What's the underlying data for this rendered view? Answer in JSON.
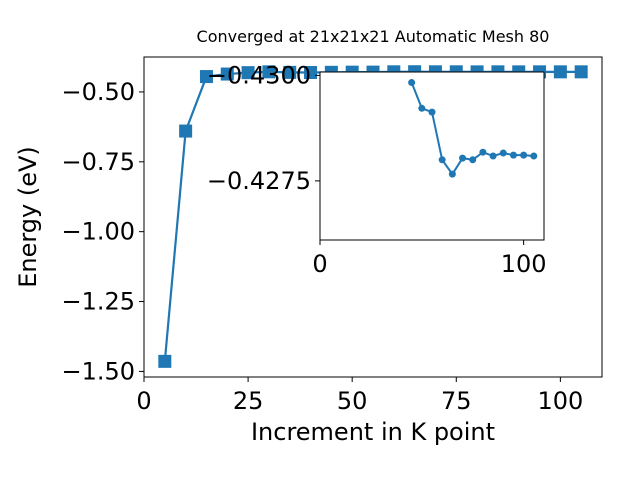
{
  "chart_data": [
    {
      "type": "line",
      "title": "Converged at 21x21x21 Automatic Mesh 80",
      "x_label": "Increment in K point",
      "y_label": "Energy (eV)",
      "x": [
        5,
        10,
        15,
        20,
        25,
        30,
        35,
        40,
        45,
        50,
        55,
        60,
        65,
        70,
        75,
        80,
        85,
        90,
        95,
        100,
        105
      ],
      "series": [
        {
          "color": "#1f77b4",
          "marker": "square",
          "values": [
            -1.464,
            -0.64,
            -0.445,
            -0.436,
            -0.431,
            -0.428,
            -0.43,
            -0.4305,
            -0.4298,
            -0.4292,
            -0.4291,
            -0.428,
            -0.4277,
            -0.428,
            -0.428,
            -0.4282,
            -0.4281,
            -0.4282,
            -0.4281,
            -0.4281,
            -0.4281
          ]
        }
      ],
      "xlim": [
        0,
        110
      ],
      "ylim": [
        -1.52,
        -0.375
      ],
      "xticks": [
        0,
        25,
        50,
        75,
        100
      ],
      "yticks": [
        {
          "value": -1.5,
          "label": "−1.50"
        },
        {
          "value": -1.25,
          "label": "−1.25"
        },
        {
          "value": -1.0,
          "label": "−1.00"
        },
        {
          "value": -0.75,
          "label": "−0.75"
        },
        {
          "value": -0.5,
          "label": "−0.50"
        }
      ]
    },
    {
      "type": "line",
      "x": [
        45,
        50,
        55,
        60,
        65,
        70,
        75,
        80,
        85,
        90,
        95,
        100,
        105
      ],
      "series": [
        {
          "color": "#1f77b4",
          "marker": "circle",
          "values": [
            -0.42983,
            -0.42922,
            -0.42913,
            -0.428,
            -0.42766,
            -0.42804,
            -0.428,
            -0.42818,
            -0.42809,
            -0.42816,
            -0.42811,
            -0.42811,
            -0.42809
          ]
        }
      ],
      "xlim": [
        0,
        110
      ],
      "ylim": [
        -0.4261,
        -0.43008
      ],
      "xticks": [
        0,
        100
      ],
      "yticks": [
        {
          "value": -0.43,
          "label": "−0.4300"
        },
        {
          "value": -0.4275,
          "label": "−0.4275"
        }
      ]
    }
  ]
}
